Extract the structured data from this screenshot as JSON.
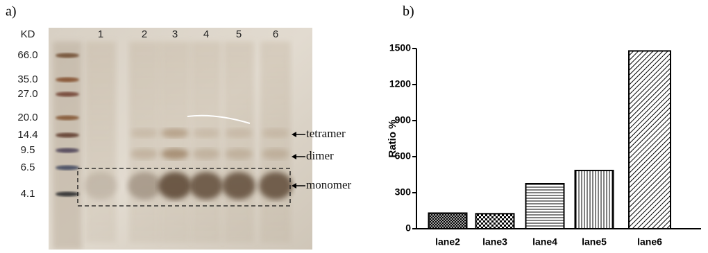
{
  "gel": {
    "panel_label": "a)",
    "marker_header": "KD",
    "markers": [
      "66.0",
      "35.0",
      "27.0",
      "20.0",
      "14.4",
      "9.5",
      "6.5",
      "4.1"
    ],
    "lanes": [
      "1",
      "2",
      "3",
      "4",
      "5",
      "6"
    ],
    "annotations": [
      "tetramer",
      "dimer",
      "monomer"
    ]
  },
  "chart_data": {
    "type": "bar",
    "panel_label": "b)",
    "ylabel": "Ratio %",
    "categories": [
      "lane2",
      "lane3",
      "lane4",
      "lane5",
      "lane6"
    ],
    "values": [
      130,
      125,
      375,
      485,
      1480
    ],
    "ylim": [
      0,
      1500
    ],
    "yticks": [
      0,
      300,
      600,
      900,
      1200,
      1500
    ],
    "color": "#000000"
  }
}
